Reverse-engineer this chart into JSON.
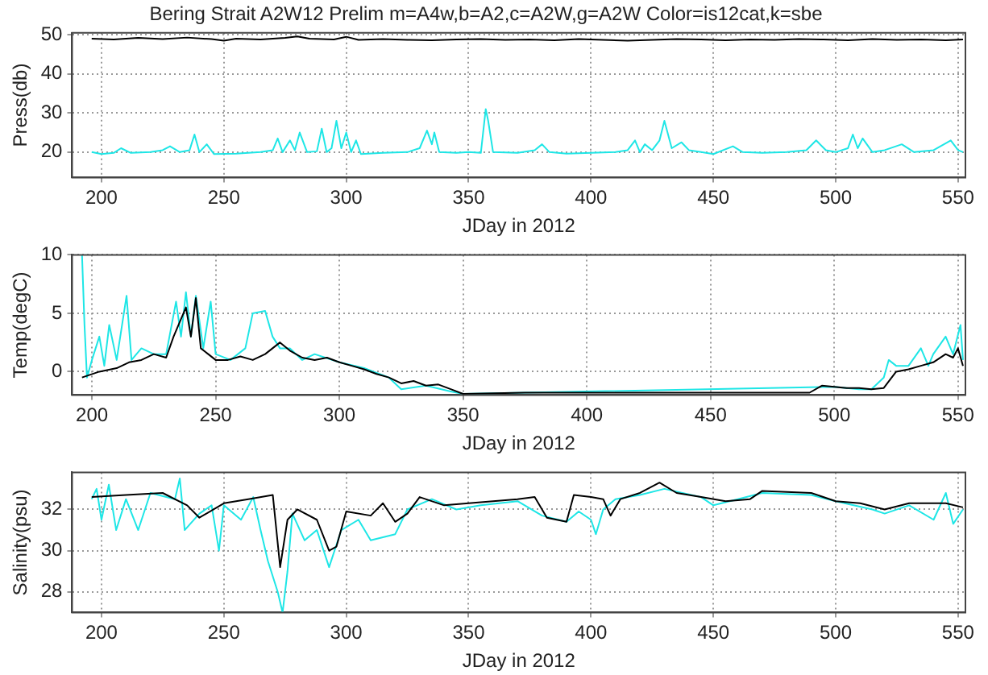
{
  "chart_data": [
    {
      "type": "line",
      "title": "Bering Strait A2W12 Prelim m=A4w,b=A2,c=A2W,g=A2W Color=is12cat,k=sbe",
      "xlabel": "JDay in 2012",
      "ylabel": "Press(db)",
      "xlim": [
        188,
        553
      ],
      "xticks": [
        200,
        250,
        300,
        350,
        400,
        450,
        500,
        550
      ],
      "ylim": [
        13.5,
        50.5
      ],
      "yticks": [
        20,
        30,
        40,
        50
      ],
      "grid": true,
      "series": [
        {
          "color": "#000000",
          "x": [
            196,
            205,
            215,
            225,
            235,
            245,
            250,
            255,
            265,
            275,
            280,
            285,
            295,
            300,
            305,
            315,
            325,
            335,
            345,
            355,
            365,
            375,
            385,
            395,
            405,
            415,
            425,
            435,
            445,
            455,
            465,
            475,
            485,
            495,
            505,
            515,
            525,
            535,
            545,
            552
          ],
          "values": [
            49,
            48.8,
            49.2,
            48.9,
            49.3,
            48.9,
            48.5,
            49,
            48.8,
            49.2,
            49.6,
            49,
            48.8,
            49.5,
            48.7,
            48.9,
            48.7,
            48.6,
            48.8,
            48.9,
            48.7,
            48.8,
            48.6,
            48.9,
            48.7,
            48.5,
            48.7,
            48.9,
            48.8,
            48.6,
            48.8,
            48.7,
            48.9,
            48.8,
            48.6,
            48.9,
            48.7,
            48.8,
            48.6,
            48.8
          ]
        },
        {
          "color": "#1ee6e6",
          "x": [
            196,
            200,
            205,
            208,
            212,
            220,
            225,
            228,
            232,
            236,
            238,
            240,
            243,
            246,
            255,
            265,
            270,
            272,
            274,
            277,
            279,
            281,
            284,
            288,
            290,
            292,
            294,
            296,
            298,
            300,
            302,
            304,
            306,
            315,
            325,
            330,
            333,
            335,
            336,
            338,
            345,
            350,
            355,
            357,
            358,
            360,
            370,
            377,
            380,
            383,
            390,
            400,
            410,
            415,
            418,
            420,
            422,
            425,
            428,
            430,
            433,
            437,
            440,
            445,
            450,
            458,
            462,
            470,
            480,
            488,
            492,
            496,
            500,
            505,
            507,
            509,
            511,
            515,
            520,
            527,
            532,
            540,
            547,
            550,
            552
          ],
          "values": [
            20,
            19.5,
            19.8,
            21,
            19.8,
            20,
            20.5,
            21.5,
            20,
            20.5,
            24.5,
            20,
            22,
            19.5,
            19.6,
            20,
            20.5,
            23.5,
            20,
            23,
            20.5,
            25,
            20,
            20.2,
            26,
            20,
            21,
            28,
            21,
            25,
            20,
            23,
            19.5,
            19.8,
            20,
            21,
            25.5,
            22,
            25,
            20,
            19.8,
            20,
            19.8,
            31,
            28,
            20,
            19.8,
            20.5,
            22,
            20,
            19.6,
            19.8,
            20,
            20.5,
            23,
            20,
            22,
            20.5,
            23,
            28,
            21,
            22.5,
            20.5,
            20,
            19.5,
            21.5,
            20,
            19.8,
            20,
            20.5,
            23,
            20.5,
            20,
            21,
            24.5,
            21,
            23.5,
            20,
            20.5,
            22,
            20,
            20.5,
            23,
            20.5,
            20
          ]
        }
      ]
    },
    {
      "type": "line",
      "xlabel": "JDay in 2012",
      "ylabel": "Temp(degC)",
      "xlim": [
        192,
        553
      ],
      "xticks": [
        200,
        250,
        300,
        350,
        400,
        450,
        500,
        550
      ],
      "ylim": [
        -2,
        10
      ],
      "yticks": [
        0,
        5,
        10
      ],
      "grid": true,
      "series": [
        {
          "color": "#000000",
          "x": [
            196,
            203,
            210,
            215,
            220,
            225,
            230,
            233,
            235,
            238,
            240,
            242,
            244,
            247,
            250,
            255,
            260,
            265,
            270,
            273,
            276,
            280,
            285,
            290,
            295,
            300,
            305,
            310,
            315,
            320,
            325,
            330,
            335,
            340,
            345,
            350,
            375,
            400,
            425,
            450,
            475,
            490,
            495,
            500,
            505,
            510,
            515,
            520,
            525,
            530,
            535,
            540,
            545,
            548,
            550,
            552
          ],
          "values": [
            -0.5,
            0,
            0.3,
            0.8,
            1,
            1.5,
            1.2,
            3,
            4,
            5.5,
            3,
            6.3,
            2,
            1.5,
            1,
            1,
            1.3,
            1,
            1.5,
            2,
            2.5,
            1.8,
            1.2,
            1,
            1.2,
            0.8,
            0.5,
            0.2,
            -0.2,
            -0.5,
            -1,
            -0.8,
            -1.2,
            -1.1,
            -1.5,
            -1.9,
            -1.8,
            -1.8,
            -1.8,
            -1.8,
            -1.8,
            -1.8,
            -1.2,
            -1.3,
            -1.4,
            -1.4,
            -1.5,
            -1.4,
            0,
            0.2,
            0.5,
            0.8,
            1.5,
            1.2,
            2,
            0.5
          ]
        },
        {
          "color": "#1ee6e6",
          "x": [
            196,
            197,
            198,
            200,
            203,
            205,
            207,
            210,
            214,
            216,
            220,
            225,
            230,
            234,
            236,
            238,
            240,
            242,
            245,
            248,
            250,
            256,
            262,
            265,
            270,
            273,
            276,
            280,
            285,
            290,
            300,
            310,
            320,
            325,
            335,
            345,
            350,
            500,
            510,
            515,
            520,
            522,
            525,
            530,
            535,
            538,
            540,
            545,
            548,
            551,
            552
          ],
          "values": [
            10,
            4,
            -0.5,
            1,
            3,
            0.5,
            4,
            1,
            6.5,
            1,
            2,
            1.5,
            1.5,
            6,
            3,
            6.8,
            3,
            6.5,
            2,
            6,
            1.5,
            1,
            2,
            5,
            5.2,
            3,
            2,
            2,
            1,
            1.5,
            0.8,
            0.3,
            -0.5,
            -1.5,
            -1.2,
            -1.7,
            -1.9,
            -1.3,
            -1.5,
            -1.5,
            -0.5,
            1,
            0.5,
            0.5,
            2,
            0.5,
            1.5,
            3,
            1.5,
            4,
            1
          ]
        }
      ]
    },
    {
      "type": "line",
      "xlabel": "JDay in 2012",
      "ylabel": "Salinity(psu)",
      "xlim": [
        188,
        553
      ],
      "xticks": [
        200,
        250,
        300,
        350,
        400,
        450,
        500,
        550
      ],
      "ylim": [
        27,
        33.8
      ],
      "yticks": [
        28,
        30,
        32
      ],
      "grid": true,
      "series": [
        {
          "color": "#000000",
          "x": [
            196,
            210,
            225,
            235,
            240,
            250,
            260,
            270,
            273,
            276,
            280,
            288,
            293,
            296,
            300,
            310,
            315,
            320,
            325,
            330,
            340,
            350,
            360,
            370,
            377,
            382,
            390,
            393,
            400,
            405,
            408,
            412,
            420,
            428,
            435,
            445,
            455,
            465,
            470,
            490,
            500,
            510,
            520,
            530,
            545,
            552
          ],
          "values": [
            32.6,
            32.7,
            32.8,
            32.2,
            31.6,
            32.3,
            32.5,
            32.7,
            29.2,
            31.5,
            32,
            31.5,
            30,
            30.2,
            31.9,
            31.7,
            32.3,
            31.4,
            31.8,
            32.6,
            32.2,
            32.3,
            32.4,
            32.5,
            32.6,
            31.6,
            31.4,
            32.7,
            32.6,
            32.5,
            31.7,
            32.5,
            32.8,
            33.3,
            32.8,
            32.6,
            32.4,
            32.5,
            32.9,
            32.8,
            32.4,
            32.3,
            32,
            32.3,
            32.3,
            32.1
          ]
        },
        {
          "color": "#1ee6e6",
          "x": [
            196,
            198,
            200,
            203,
            206,
            210,
            215,
            220,
            230,
            232,
            234,
            240,
            245,
            248,
            250,
            257,
            262,
            265,
            268,
            272,
            274,
            276,
            278,
            283,
            288,
            293,
            298,
            305,
            310,
            320,
            325,
            335,
            345,
            355,
            370,
            380,
            390,
            395,
            400,
            402,
            405,
            410,
            420,
            430,
            445,
            450,
            460,
            470,
            490,
            500,
            515,
            520,
            530,
            540,
            545,
            548,
            552
          ],
          "values": [
            32.5,
            33,
            31.5,
            33.2,
            31,
            32.5,
            31,
            32.8,
            32.5,
            33.5,
            31,
            31.8,
            32.2,
            30,
            32.2,
            31.5,
            32.6,
            31,
            29.5,
            28,
            27,
            29,
            31.8,
            30.5,
            31,
            29.2,
            31,
            31.5,
            30.5,
            30.8,
            32,
            32.5,
            32,
            32.2,
            32.4,
            31.7,
            31.4,
            31.9,
            31.5,
            30.8,
            32,
            32.5,
            32.7,
            33,
            32.6,
            32.2,
            32.5,
            32.8,
            32.7,
            32.4,
            32,
            31.8,
            32.2,
            31.5,
            32.8,
            31.3,
            32
          ]
        }
      ]
    }
  ]
}
